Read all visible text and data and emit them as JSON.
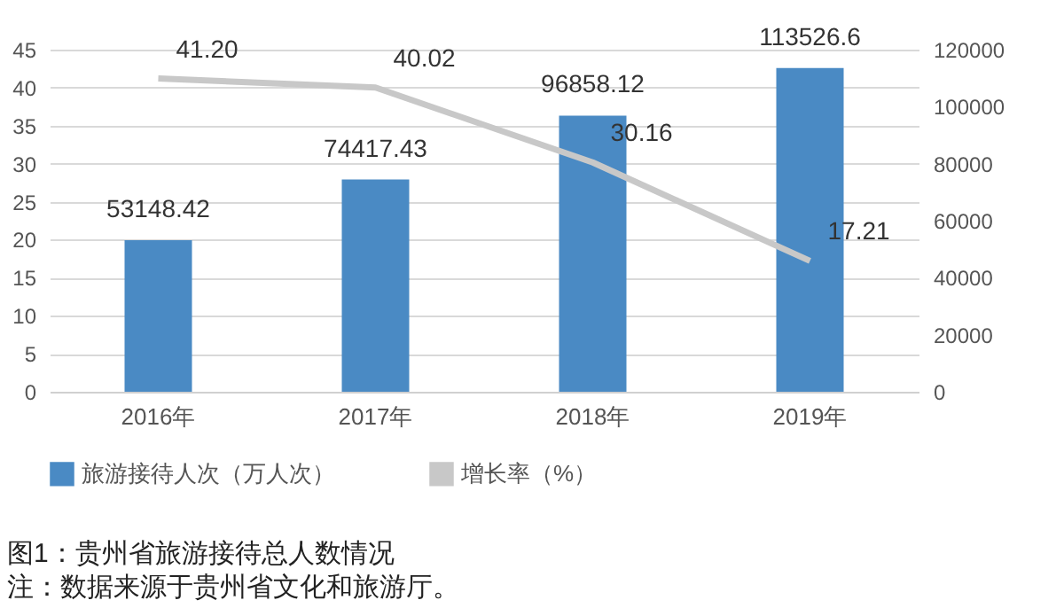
{
  "chart_data": {
    "type": "bar",
    "categories": [
      "2016年",
      "2017年",
      "2018年",
      "2019年"
    ],
    "series": [
      {
        "name": "旅游接待人次（万人次）",
        "type": "bar",
        "axis": "y2",
        "color": "#4a8ac4",
        "values": [
          53148.42,
          74417.43,
          96858.12,
          113526.6
        ],
        "value_labels": [
          "53148.42",
          "74417.43",
          "96858.12",
          "113526.6"
        ]
      },
      {
        "name": "增长率（%）",
        "type": "line",
        "color": "#c8c8c8",
        "values": [
          41.2,
          40.02,
          30.16,
          17.21
        ],
        "value_labels": [
          "41.20",
          "40.02",
          "30.16",
          "17.21"
        ]
      }
    ],
    "ylim": [
      0,
      45
    ],
    "yticks": [
      0,
      5,
      10,
      15,
      20,
      25,
      30,
      35,
      40,
      45
    ],
    "y2lim": [
      0,
      120000
    ],
    "y2ticks": [
      0,
      20000,
      40000,
      60000,
      80000,
      100000,
      120000
    ],
    "grid": "y",
    "legend": "bottom",
    "marker": "none",
    "annotations": [
      "图1：贵州省旅游接待总人数情况",
      "注：数据来源于贵州省文化和旅游厅。"
    ]
  }
}
